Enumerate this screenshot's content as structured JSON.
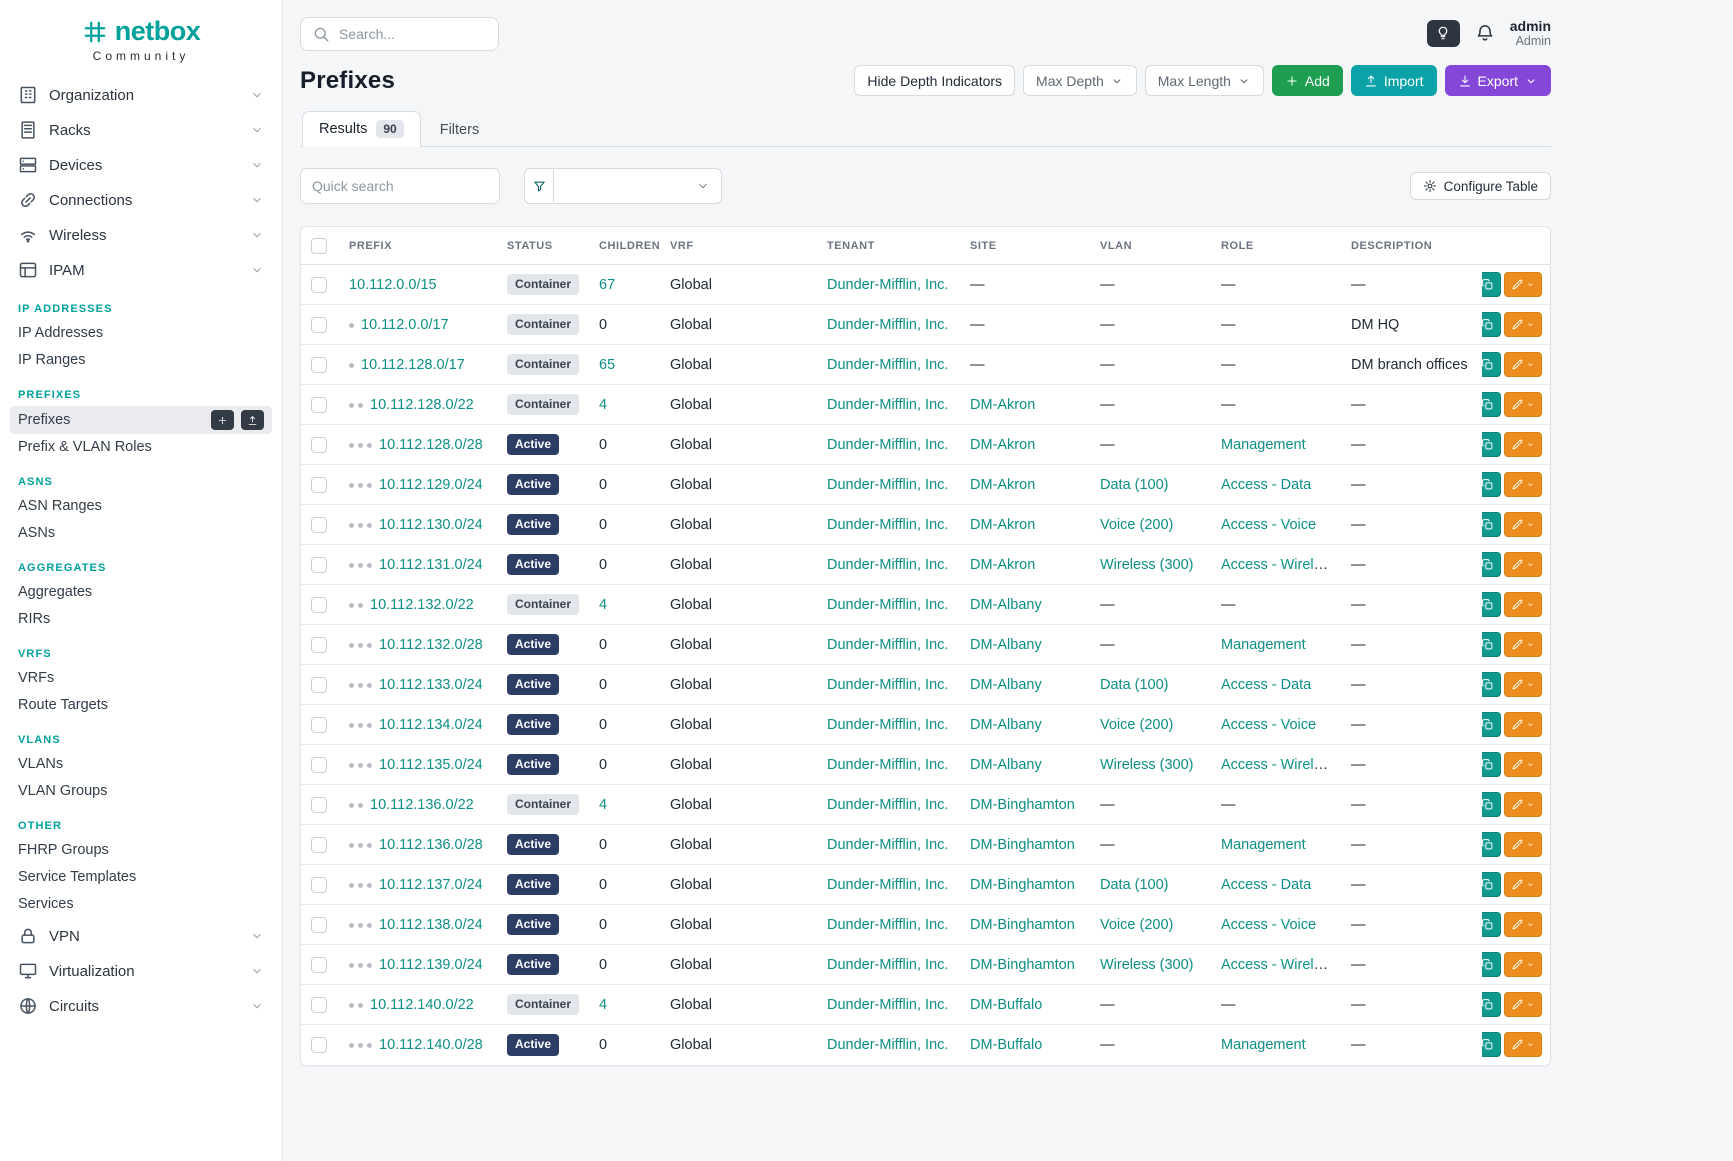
{
  "brand": {
    "name": "netbox",
    "subtitle": "Community"
  },
  "topbar": {
    "search_placeholder": "Search...",
    "user": {
      "name": "admin",
      "role": "Admin"
    }
  },
  "sidebar": {
    "top_items": [
      {
        "label": "Organization",
        "icon": "organization"
      },
      {
        "label": "Racks",
        "icon": "racks"
      },
      {
        "label": "Devices",
        "icon": "devices"
      },
      {
        "label": "Connections",
        "icon": "connections"
      },
      {
        "label": "Wireless",
        "icon": "wireless"
      },
      {
        "label": "IPAM",
        "icon": "ipam"
      }
    ],
    "sections": [
      {
        "header": "IP ADDRESSES",
        "items": [
          {
            "label": "IP Addresses"
          },
          {
            "label": "IP Ranges"
          }
        ]
      },
      {
        "header": "PREFIXES",
        "items": [
          {
            "label": "Prefixes",
            "active": true
          },
          {
            "label": "Prefix & VLAN Roles"
          }
        ]
      },
      {
        "header": "ASNS",
        "items": [
          {
            "label": "ASN Ranges"
          },
          {
            "label": "ASNs"
          }
        ]
      },
      {
        "header": "AGGREGATES",
        "items": [
          {
            "label": "Aggregates"
          },
          {
            "label": "RIRs"
          }
        ]
      },
      {
        "header": "VRFS",
        "items": [
          {
            "label": "VRFs"
          },
          {
            "label": "Route Targets"
          }
        ]
      },
      {
        "header": "VLANS",
        "items": [
          {
            "label": "VLANs"
          },
          {
            "label": "VLAN Groups"
          }
        ]
      },
      {
        "header": "OTHER",
        "items": [
          {
            "label": "FHRP Groups"
          },
          {
            "label": "Service Templates"
          },
          {
            "label": "Services"
          }
        ]
      }
    ],
    "bottom_items": [
      {
        "label": "VPN",
        "icon": "vpn"
      },
      {
        "label": "Virtualization",
        "icon": "virtualization"
      },
      {
        "label": "Circuits",
        "icon": "circuits"
      }
    ]
  },
  "page": {
    "title": "Prefixes"
  },
  "toolbar": {
    "hide_depth_label": "Hide Depth Indicators",
    "max_depth_label": "Max Depth",
    "max_length_label": "Max Length",
    "add_label": "Add",
    "import_label": "Import",
    "export_label": "Export"
  },
  "tabs": [
    {
      "label": "Results",
      "badge": "90"
    },
    {
      "label": "Filters"
    }
  ],
  "filter_bar": {
    "quick_search_placeholder": "Quick search",
    "configure_table_label": "Configure Table"
  },
  "table": {
    "columns": [
      "PREFIX",
      "STATUS",
      "CHILDREN",
      "VRF",
      "TENANT",
      "SITE",
      "VLAN",
      "ROLE",
      "DESCRIPTION"
    ],
    "rows": [
      {
        "prefix": "10.112.0.0/15",
        "depth": 0,
        "status": "Container",
        "children": 67,
        "vrf": "Global",
        "tenant": "Dunder-Mifflin, Inc.",
        "site": "—",
        "vlan": "—",
        "role": "—",
        "description": "—"
      },
      {
        "prefix": "10.112.0.0/17",
        "depth": 1,
        "status": "Container",
        "children": 0,
        "vrf": "Global",
        "tenant": "Dunder-Mifflin, Inc.",
        "site": "—",
        "vlan": "—",
        "role": "—",
        "description": "DM HQ"
      },
      {
        "prefix": "10.112.128.0/17",
        "depth": 1,
        "status": "Container",
        "children": 65,
        "vrf": "Global",
        "tenant": "Dunder-Mifflin, Inc.",
        "site": "—",
        "vlan": "—",
        "role": "—",
        "description": "DM branch offices"
      },
      {
        "prefix": "10.112.128.0/22",
        "depth": 2,
        "status": "Container",
        "children": 4,
        "vrf": "Global",
        "tenant": "Dunder-Mifflin, Inc.",
        "site": "DM-Akron",
        "vlan": "—",
        "role": "—",
        "description": "—"
      },
      {
        "prefix": "10.112.128.0/28",
        "depth": 3,
        "status": "Active",
        "children": 0,
        "vrf": "Global",
        "tenant": "Dunder-Mifflin, Inc.",
        "site": "DM-Akron",
        "vlan": "—",
        "role": "Management",
        "description": "—"
      },
      {
        "prefix": "10.112.129.0/24",
        "depth": 3,
        "status": "Active",
        "children": 0,
        "vrf": "Global",
        "tenant": "Dunder-Mifflin, Inc.",
        "site": "DM-Akron",
        "vlan": "Data (100)",
        "role": "Access - Data",
        "description": "—"
      },
      {
        "prefix": "10.112.130.0/24",
        "depth": 3,
        "status": "Active",
        "children": 0,
        "vrf": "Global",
        "tenant": "Dunder-Mifflin, Inc.",
        "site": "DM-Akron",
        "vlan": "Voice (200)",
        "role": "Access - Voice",
        "description": "—"
      },
      {
        "prefix": "10.112.131.0/24",
        "depth": 3,
        "status": "Active",
        "children": 0,
        "vrf": "Global",
        "tenant": "Dunder-Mifflin, Inc.",
        "site": "DM-Akron",
        "vlan": "Wireless (300)",
        "role": "Access - Wireless",
        "description": "—"
      },
      {
        "prefix": "10.112.132.0/22",
        "depth": 2,
        "status": "Container",
        "children": 4,
        "vrf": "Global",
        "tenant": "Dunder-Mifflin, Inc.",
        "site": "DM-Albany",
        "vlan": "—",
        "role": "—",
        "description": "—"
      },
      {
        "prefix": "10.112.132.0/28",
        "depth": 3,
        "status": "Active",
        "children": 0,
        "vrf": "Global",
        "tenant": "Dunder-Mifflin, Inc.",
        "site": "DM-Albany",
        "vlan": "—",
        "role": "Management",
        "description": "—"
      },
      {
        "prefix": "10.112.133.0/24",
        "depth": 3,
        "status": "Active",
        "children": 0,
        "vrf": "Global",
        "tenant": "Dunder-Mifflin, Inc.",
        "site": "DM-Albany",
        "vlan": "Data (100)",
        "role": "Access - Data",
        "description": "—"
      },
      {
        "prefix": "10.112.134.0/24",
        "depth": 3,
        "status": "Active",
        "children": 0,
        "vrf": "Global",
        "tenant": "Dunder-Mifflin, Inc.",
        "site": "DM-Albany",
        "vlan": "Voice (200)",
        "role": "Access - Voice",
        "description": "—"
      },
      {
        "prefix": "10.112.135.0/24",
        "depth": 3,
        "status": "Active",
        "children": 0,
        "vrf": "Global",
        "tenant": "Dunder-Mifflin, Inc.",
        "site": "DM-Albany",
        "vlan": "Wireless (300)",
        "role": "Access - Wireless",
        "description": "—"
      },
      {
        "prefix": "10.112.136.0/22",
        "depth": 2,
        "status": "Container",
        "children": 4,
        "vrf": "Global",
        "tenant": "Dunder-Mifflin, Inc.",
        "site": "DM-Binghamton",
        "vlan": "—",
        "role": "—",
        "description": "—"
      },
      {
        "prefix": "10.112.136.0/28",
        "depth": 3,
        "status": "Active",
        "children": 0,
        "vrf": "Global",
        "tenant": "Dunder-Mifflin, Inc.",
        "site": "DM-Binghamton",
        "vlan": "—",
        "role": "Management",
        "description": "—"
      },
      {
        "prefix": "10.112.137.0/24",
        "depth": 3,
        "status": "Active",
        "children": 0,
        "vrf": "Global",
        "tenant": "Dunder-Mifflin, Inc.",
        "site": "DM-Binghamton",
        "vlan": "Data (100)",
        "role": "Access - Data",
        "description": "—"
      },
      {
        "prefix": "10.112.138.0/24",
        "depth": 3,
        "status": "Active",
        "children": 0,
        "vrf": "Global",
        "tenant": "Dunder-Mifflin, Inc.",
        "site": "DM-Binghamton",
        "vlan": "Voice (200)",
        "role": "Access - Voice",
        "description": "—"
      },
      {
        "prefix": "10.112.139.0/24",
        "depth": 3,
        "status": "Active",
        "children": 0,
        "vrf": "Global",
        "tenant": "Dunder-Mifflin, Inc.",
        "site": "DM-Binghamton",
        "vlan": "Wireless (300)",
        "role": "Access - Wireless",
        "description": "—"
      },
      {
        "prefix": "10.112.140.0/22",
        "depth": 2,
        "status": "Container",
        "children": 4,
        "vrf": "Global",
        "tenant": "Dunder-Mifflin, Inc.",
        "site": "DM-Buffalo",
        "vlan": "—",
        "role": "—",
        "description": "—"
      },
      {
        "prefix": "10.112.140.0/28",
        "depth": 3,
        "status": "Active",
        "children": 0,
        "vrf": "Global",
        "tenant": "Dunder-Mifflin, Inc.",
        "site": "DM-Buffalo",
        "vlan": "—",
        "role": "Management",
        "description": "—"
      }
    ]
  }
}
